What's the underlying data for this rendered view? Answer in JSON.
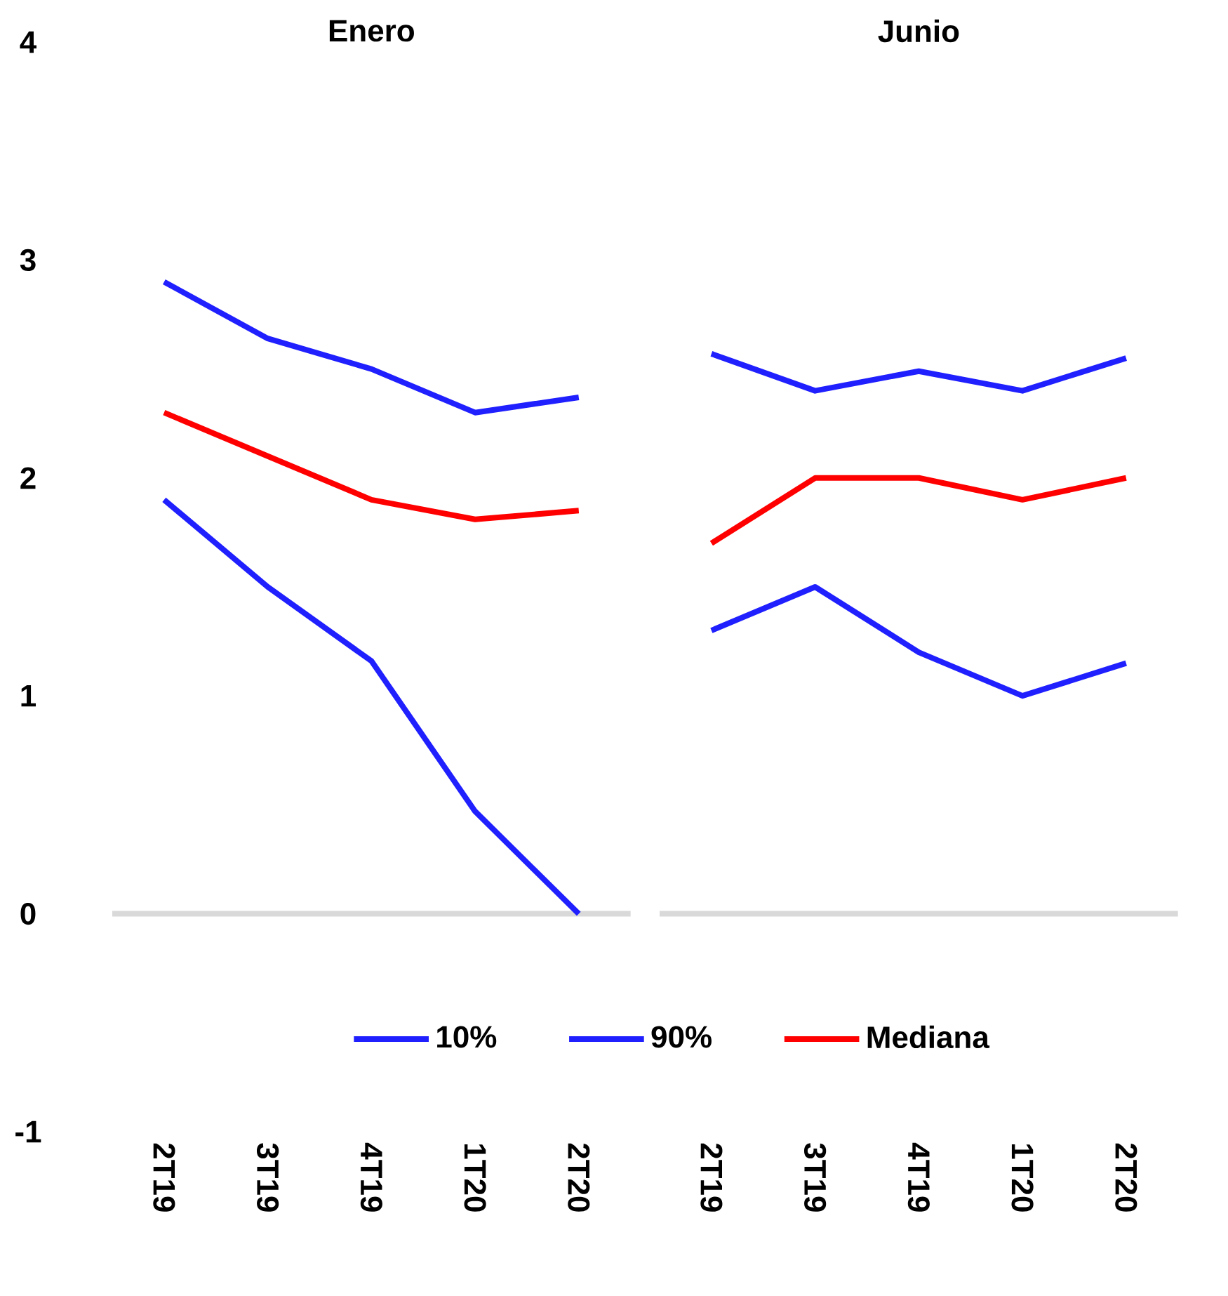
{
  "chart_data": [
    {
      "type": "line",
      "title": "Enero",
      "categories": [
        "2T19",
        "3T19",
        "4T19",
        "1T20",
        "2T20"
      ],
      "series": [
        {
          "name": "10%",
          "color": "#2020ff",
          "values": [
            1.9,
            1.5,
            1.16,
            0.47,
            0.0
          ]
        },
        {
          "name": "90%",
          "color": "#2020ff",
          "values": [
            2.9,
            2.64,
            2.5,
            2.3,
            2.37
          ]
        },
        {
          "name": "Mediana",
          "color": "#ff0000",
          "values": [
            2.3,
            2.1,
            1.9,
            1.81,
            1.85
          ]
        }
      ],
      "ylim": [
        -1,
        4
      ],
      "yticks": [
        -1,
        0,
        1,
        2,
        3,
        4
      ],
      "legend": "bottom",
      "marker": "none",
      "line_style": "solid",
      "ref_lines": [
        {
          "axis": "y",
          "value": 0,
          "color": "#d9d9d9"
        }
      ]
    },
    {
      "type": "line",
      "title": "Junio",
      "categories": [
        "2T19",
        "3T19",
        "4T19",
        "1T20",
        "2T20"
      ],
      "series": [
        {
          "color": "#2020ff",
          "values": [
            1.3,
            1.5,
            1.2,
            1.0,
            1.15
          ]
        },
        {
          "color": "#2020ff",
          "values": [
            2.57,
            2.4,
            2.49,
            2.4,
            2.55
          ]
        },
        {
          "color": "#ff0000",
          "values": [
            1.7,
            2.0,
            2.0,
            1.9,
            2.0
          ]
        }
      ],
      "ylim": [
        -1,
        4
      ],
      "yticks": [
        -1,
        0,
        1,
        2,
        3,
        4
      ],
      "tick_labels": "x",
      "marker": "none",
      "line_style": "solid",
      "ref_lines": [
        {
          "axis": "y",
          "value": 0,
          "color": "#d9d9d9"
        }
      ]
    }
  ]
}
